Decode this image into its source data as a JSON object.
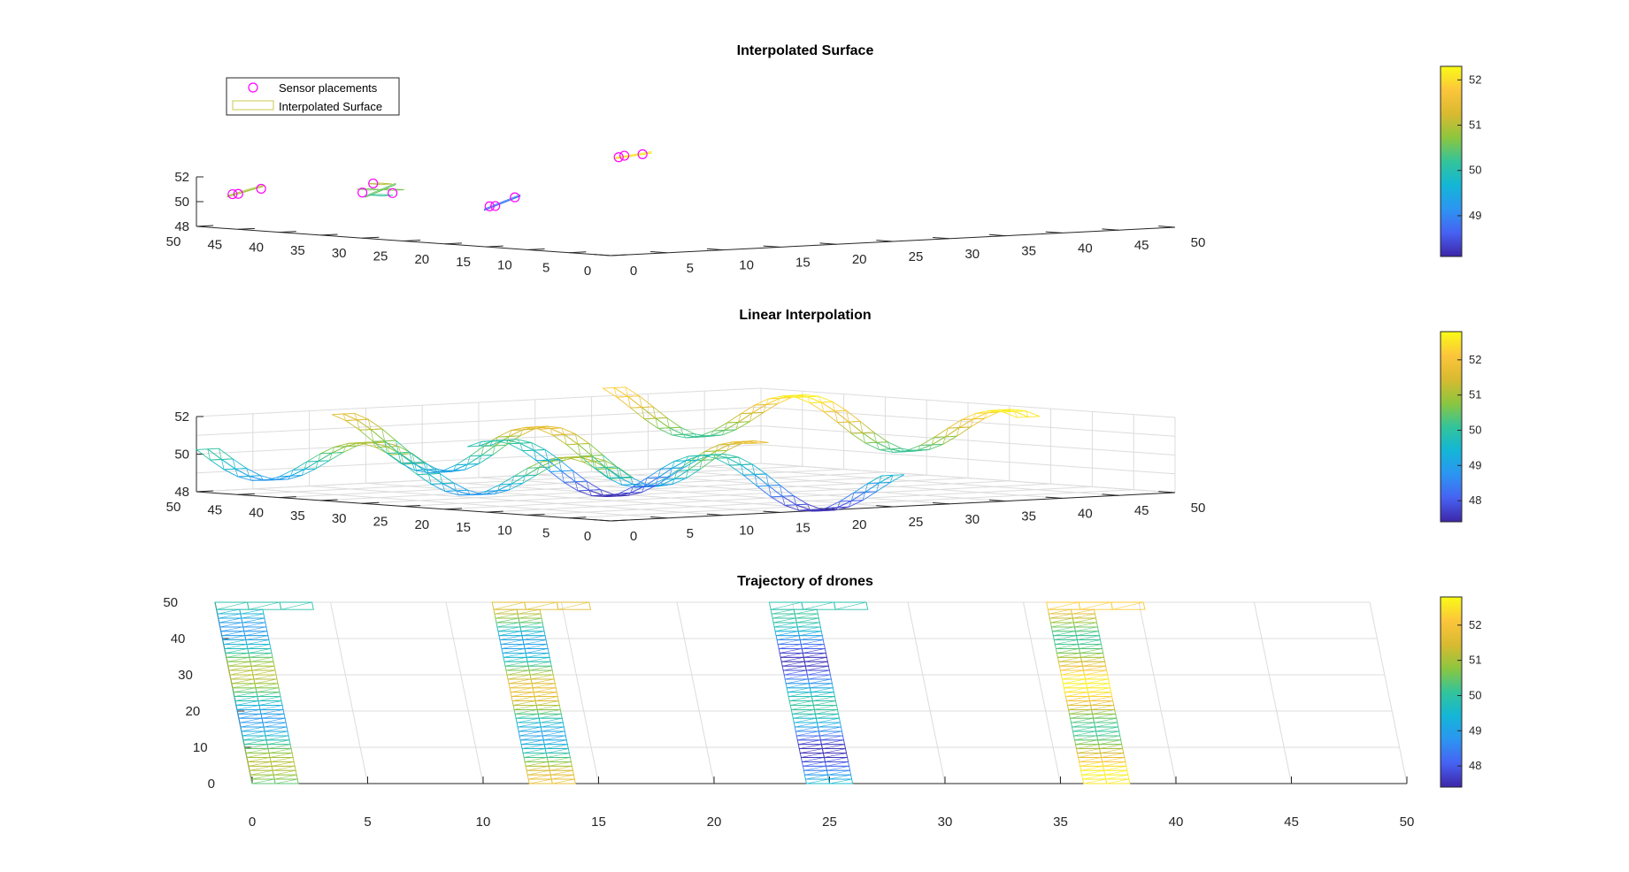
{
  "figure": {
    "background": "#ffffff",
    "axis_color": "#262626",
    "grid_color": "#dcdcdc",
    "colormap": "parula",
    "colormap_stops": [
      "#3e26a8",
      "#4662f3",
      "#2c95f2",
      "#13b6d6",
      "#33c49a",
      "#8cc63e",
      "#d9ba30",
      "#fcc53b",
      "#f9fb15"
    ]
  },
  "chart_data": [
    {
      "type": "surface",
      "style": "3d-mesh",
      "title": "Interpolated Surface",
      "xlim": [
        0,
        50
      ],
      "ylim": [
        0,
        50
      ],
      "zlim": [
        48,
        52
      ],
      "x_ticks": [
        "0",
        "5",
        "10",
        "15",
        "20",
        "25",
        "30",
        "35",
        "40",
        "45",
        "50"
      ],
      "y_ticks": [
        "0",
        "5",
        "10",
        "15",
        "20",
        "25",
        "30",
        "35",
        "40",
        "45",
        "50"
      ],
      "z_ticks": [
        "48",
        "50",
        "52"
      ],
      "grid": false,
      "legend": {
        "placement": "top-left",
        "entries": [
          {
            "label": "Sensor placements",
            "marker": "circle",
            "color": "#ff00ff"
          },
          {
            "label": "Interpolated Surface",
            "marker": "patch",
            "color": "#c8c850"
          }
        ]
      },
      "colorbar": {
        "range": [
          48.1,
          52.3
        ],
        "ticks": [
          "49",
          "50",
          "51",
          "52"
        ]
      },
      "sensors": [
        {
          "x": 1,
          "y": 47,
          "z": 50.7
        },
        {
          "x": 1.5,
          "y": 47,
          "z": 50.7
        },
        {
          "x": 2.8,
          "y": 46,
          "z": 51.1
        },
        {
          "x": 12.5,
          "y": 47,
          "z": 50.3
        },
        {
          "x": 12.5,
          "y": 45.7,
          "z": 51.1
        },
        {
          "x": 13.7,
          "y": 45,
          "z": 50.3
        },
        {
          "x": 24.5,
          "y": 48,
          "z": 48.6
        },
        {
          "x": 25,
          "y": 48,
          "z": 48.6
        },
        {
          "x": 26,
          "y": 47,
          "z": 49.3
        },
        {
          "x": 36.3,
          "y": 48.5,
          "z": 52.0
        },
        {
          "x": 36.8,
          "y": 48.5,
          "z": 52.1
        },
        {
          "x": 37.9,
          "y": 47.8,
          "z": 52.2
        }
      ],
      "segments": [
        {
          "x": [
            0.5,
            3
          ],
          "y": 47,
          "z": [
            50.5,
            51.3
          ]
        },
        {
          "x": [
            12,
            14
          ],
          "y": 46,
          "z": [
            50.0,
            51.0
          ]
        },
        {
          "x": [
            24,
            26.5
          ],
          "y": 48,
          "z": [
            48.3,
            49.4
          ]
        },
        {
          "x": [
            36,
            38.5
          ],
          "y": 48.5,
          "z": [
            51.9,
            52.3
          ]
        }
      ]
    },
    {
      "type": "surface",
      "style": "3d-mesh",
      "title": "Linear Interpolation",
      "xlim": [
        0,
        50
      ],
      "ylim": [
        0,
        50
      ],
      "zlim": [
        48,
        52
      ],
      "x_ticks": [
        "0",
        "5",
        "10",
        "15",
        "20",
        "25",
        "30",
        "35",
        "40",
        "45",
        "50"
      ],
      "y_ticks": [
        "0",
        "5",
        "10",
        "15",
        "20",
        "25",
        "30",
        "35",
        "40",
        "45",
        "50"
      ],
      "z_ticks": [
        "48",
        "50",
        "52"
      ],
      "grid": true,
      "colorbar": {
        "range": [
          47.4,
          52.8
        ],
        "ticks": [
          "48",
          "49",
          "50",
          "51",
          "52"
        ]
      },
      "strips": [
        {
          "x": [
            0,
            2
          ],
          "base": 50.0,
          "amp": 1.2,
          "phase": 0.2
        },
        {
          "x": [
            12,
            14
          ],
          "base": 50.4,
          "amp": 1.4,
          "phase": 1.3
        },
        {
          "x": [
            24,
            26
          ],
          "base": 48.8,
          "amp": 1.3,
          "phase": 2.4
        },
        {
          "x": [
            36,
            38
          ],
          "base": 51.4,
          "amp": 1.3,
          "phase": 0.9
        }
      ]
    },
    {
      "type": "surface",
      "style": "top-view-mesh",
      "title": "Trajectory of drones",
      "xlim": [
        0,
        50
      ],
      "ylim": [
        0,
        50
      ],
      "x_ticks": [
        "0",
        "5",
        "10",
        "15",
        "20",
        "25",
        "30",
        "35",
        "40",
        "45",
        "50"
      ],
      "y_ticks": [
        "0",
        "10",
        "20",
        "30",
        "40",
        "50"
      ],
      "grid": true,
      "colorbar": {
        "range": [
          47.4,
          52.8
        ],
        "ticks": [
          "48",
          "49",
          "50",
          "51",
          "52"
        ]
      },
      "strips": [
        {
          "x": [
            0,
            2
          ],
          "base": 50.0,
          "amp": 1.2,
          "phase": 0.2
        },
        {
          "x": [
            12,
            14
          ],
          "base": 50.4,
          "amp": 1.4,
          "phase": 1.3
        },
        {
          "x": [
            24,
            26
          ],
          "base": 48.8,
          "amp": 1.3,
          "phase": 2.4
        },
        {
          "x": [
            36,
            38
          ],
          "base": 51.4,
          "amp": 1.3,
          "phase": 0.9
        }
      ]
    }
  ]
}
